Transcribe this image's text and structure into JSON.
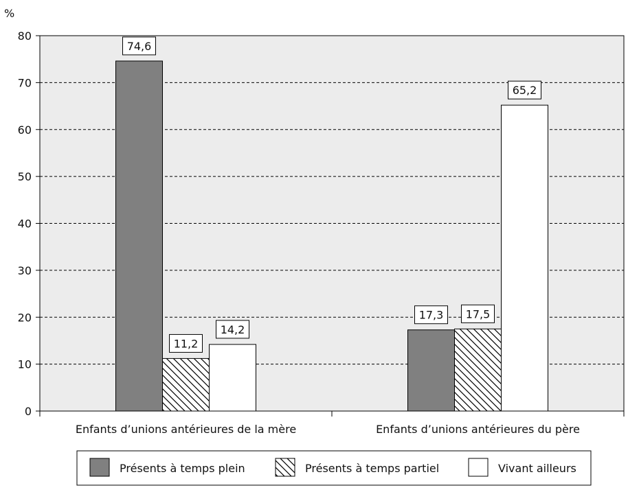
{
  "chart_data": {
    "type": "bar",
    "ylabel": "%",
    "ylim": [
      0,
      80
    ],
    "yticks": [
      0,
      10,
      20,
      30,
      40,
      50,
      60,
      70,
      80
    ],
    "grid": true,
    "legend_position": "bottom",
    "categories": [
      "Enfants d’unions antérieures de la mère",
      "Enfants d’unions antérieures du père"
    ],
    "series": [
      {
        "name": "Présents à temps plein",
        "values": [
          74.6,
          17.3
        ],
        "labels": [
          "74,6",
          "17,3"
        ],
        "fill": "solid",
        "color": "#808080"
      },
      {
        "name": "Présents à temps partiel",
        "values": [
          11.2,
          17.5
        ],
        "labels": [
          "11,2",
          "17,5"
        ],
        "fill": "hatched",
        "color": "#ffffff"
      },
      {
        "name": "Vivant ailleurs",
        "values": [
          14.2,
          65.2
        ],
        "labels": [
          "14,2",
          "65,2"
        ],
        "fill": "empty",
        "color": "#ffffff"
      }
    ],
    "plot_background": "#ececec"
  }
}
